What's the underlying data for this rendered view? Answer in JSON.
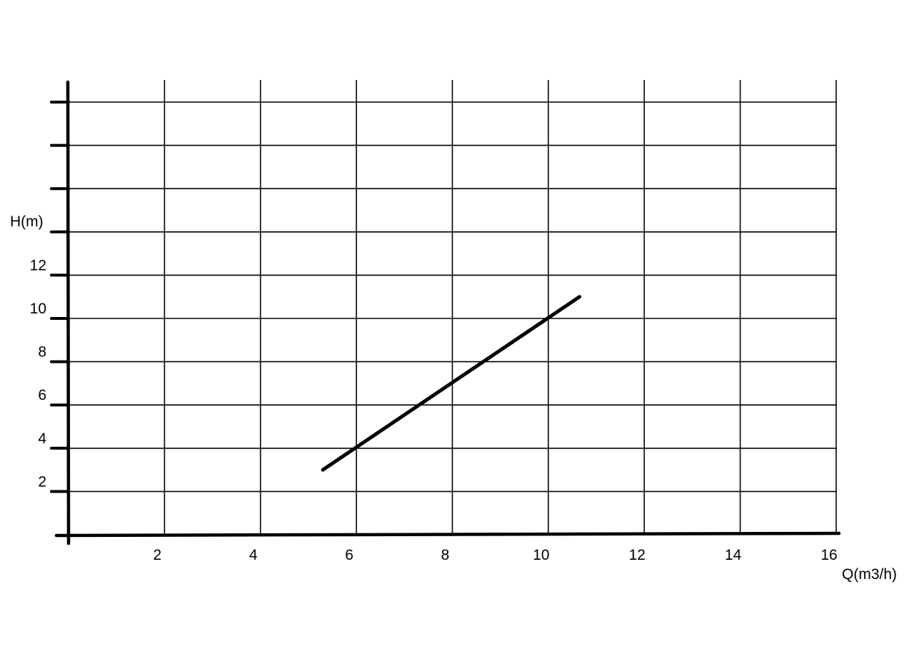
{
  "chart_data": {
    "type": "line",
    "title": "",
    "xlabel": "Q(m3/h)",
    "ylabel": "H(m)",
    "xlim": [
      0,
      16
    ],
    "ylim": [
      0,
      20
    ],
    "x_ticks": [
      2,
      4,
      6,
      8,
      10,
      12,
      14,
      16
    ],
    "y_ticks": [
      2,
      4,
      6,
      8,
      10,
      12,
      14,
      16,
      18,
      20
    ],
    "y_tick_labels": [
      "2",
      "4",
      "6",
      "8",
      "10",
      "12"
    ],
    "grid": true,
    "series": [
      {
        "x": [
          5.3,
          10.65
        ],
        "y": [
          3,
          11
        ],
        "color": "#000000"
      }
    ]
  }
}
